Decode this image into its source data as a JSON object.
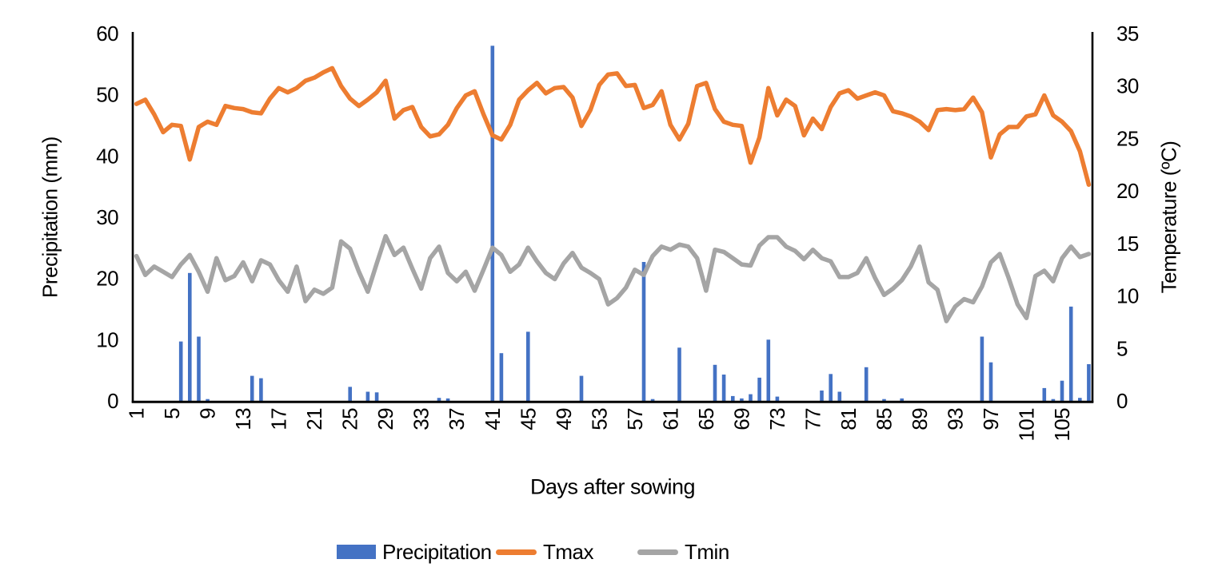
{
  "chart_data": {
    "type": "composite-bar-line",
    "n_days": 108,
    "xlabel": "Days after sowing",
    "x_tick_labels": [
      1,
      5,
      9,
      13,
      17,
      21,
      25,
      29,
      33,
      37,
      41,
      45,
      49,
      53,
      57,
      61,
      65,
      69,
      73,
      77,
      81,
      85,
      89,
      93,
      97,
      101,
      105
    ],
    "left_axis": {
      "label": "Precipitation (mm)",
      "min": 0,
      "max": 60,
      "step": 10
    },
    "right_axis": {
      "label": "Temperature (ºC)",
      "min": 0,
      "max": 35,
      "step": 5
    },
    "grid": false,
    "legend_position": "bottom",
    "background_color": "#ffffff",
    "axis_color": "#000000",
    "series": [
      {
        "name": "Precipitation",
        "type": "bar",
        "axis": "left",
        "color": "#4472C4",
        "values": [
          0,
          0,
          0,
          0,
          0,
          9.7,
          20.9,
          10.5,
          0.3,
          0,
          0,
          0,
          0,
          4.1,
          3.7,
          0,
          0,
          0,
          0,
          0,
          0,
          0,
          0,
          0,
          2.3,
          0,
          1.5,
          1.4,
          0,
          0,
          0,
          0,
          0,
          0,
          0.5,
          0.4,
          0,
          0,
          0,
          0,
          58,
          7.8,
          0,
          0,
          11.3,
          0,
          0,
          0,
          0,
          0,
          4.1,
          0,
          0,
          0,
          0,
          0,
          0,
          22.7,
          0.3,
          0,
          0,
          8.7,
          0,
          0,
          0,
          5.9,
          4.3,
          0.8,
          0.4,
          1.1,
          3.8,
          10,
          0.7,
          0,
          0,
          0,
          0,
          1.7,
          4.4,
          1.5,
          0,
          0,
          5.5,
          0,
          0.3,
          0,
          0.4,
          0,
          0,
          0,
          0,
          0,
          0,
          0,
          0,
          10.5,
          6.3,
          0,
          0,
          0,
          0,
          0,
          2.1,
          0.3,
          3.3,
          15.4,
          0.5,
          6
        ]
      },
      {
        "name": "Tmax",
        "type": "line",
        "axis": "right",
        "color": "#ED7D31",
        "values": [
          28.3,
          28.7,
          27.3,
          25.6,
          26.3,
          26.2,
          23.0,
          26.1,
          26.6,
          26.3,
          28.1,
          27.9,
          27.8,
          27.5,
          27.4,
          28.8,
          29.8,
          29.4,
          29.8,
          30.5,
          30.8,
          31.3,
          31.7,
          30.0,
          28.8,
          28.1,
          28.7,
          29.4,
          30.5,
          26.9,
          27.7,
          28.0,
          26.1,
          25.2,
          25.4,
          26.3,
          27.9,
          29.1,
          29.5,
          27.3,
          25.3,
          24.9,
          26.3,
          28.7,
          29.6,
          30.3,
          29.3,
          29.8,
          29.9,
          28.9,
          26.2,
          27.7,
          30.1,
          31.1,
          31.2,
          30.0,
          30.1,
          27.9,
          28.2,
          29.5,
          26.3,
          24.9,
          26.4,
          30.0,
          30.3,
          27.8,
          26.6,
          26.3,
          26.2,
          22.7,
          25.1,
          29.8,
          27.2,
          28.7,
          28.1,
          25.3,
          26.9,
          25.9,
          28.0,
          29.3,
          29.6,
          28.8,
          29.1,
          29.4,
          29.1,
          27.6,
          27.4,
          27.1,
          26.6,
          25.8,
          27.7,
          27.8,
          27.7,
          27.8,
          28.9,
          27.5,
          23.2,
          25.4,
          26.1,
          26.1,
          27.1,
          27.3,
          29.1,
          27.2,
          26.6,
          25.7,
          23.8,
          20.6
        ]
      },
      {
        "name": "Tmin",
        "type": "line",
        "axis": "right",
        "color": "#A5A5A5",
        "values": [
          13.8,
          12.0,
          12.8,
          12.3,
          11.8,
          13.0,
          13.9,
          12.3,
          10.4,
          13.6,
          11.5,
          11.9,
          13.2,
          11.4,
          13.4,
          13.0,
          11.5,
          10.4,
          12.8,
          9.5,
          10.6,
          10.2,
          10.8,
          15.2,
          14.5,
          12.3,
          10.4,
          13.1,
          15.7,
          13.9,
          14.6,
          12.6,
          10.7,
          13.6,
          14.7,
          12.2,
          11.4,
          12.3,
          10.5,
          12.5,
          14.6,
          13.9,
          12.3,
          13.0,
          14.6,
          13.3,
          12.2,
          11.6,
          13.1,
          14.1,
          12.7,
          12.2,
          11.6,
          9.2,
          9.8,
          10.8,
          12.5,
          12.0,
          13.8,
          14.7,
          14.4,
          14.9,
          14.7,
          13.6,
          10.5,
          14.4,
          14.2,
          13.6,
          13.0,
          12.9,
          14.8,
          15.6,
          15.6,
          14.7,
          14.3,
          13.5,
          14.4,
          13.6,
          13.3,
          11.8,
          11.8,
          12.2,
          13.6,
          11.7,
          10.1,
          10.7,
          11.5,
          12.8,
          14.7,
          11.3,
          10.6,
          7.6,
          9.0,
          9.7,
          9.4,
          10.9,
          13.2,
          14.0,
          11.7,
          9.2,
          7.9,
          11.9,
          12.4,
          11.4,
          13.6,
          14.7,
          13.7,
          14.0
        ]
      }
    ],
    "legend": [
      "Precipitation",
      "Tmax",
      "Tmin"
    ]
  }
}
